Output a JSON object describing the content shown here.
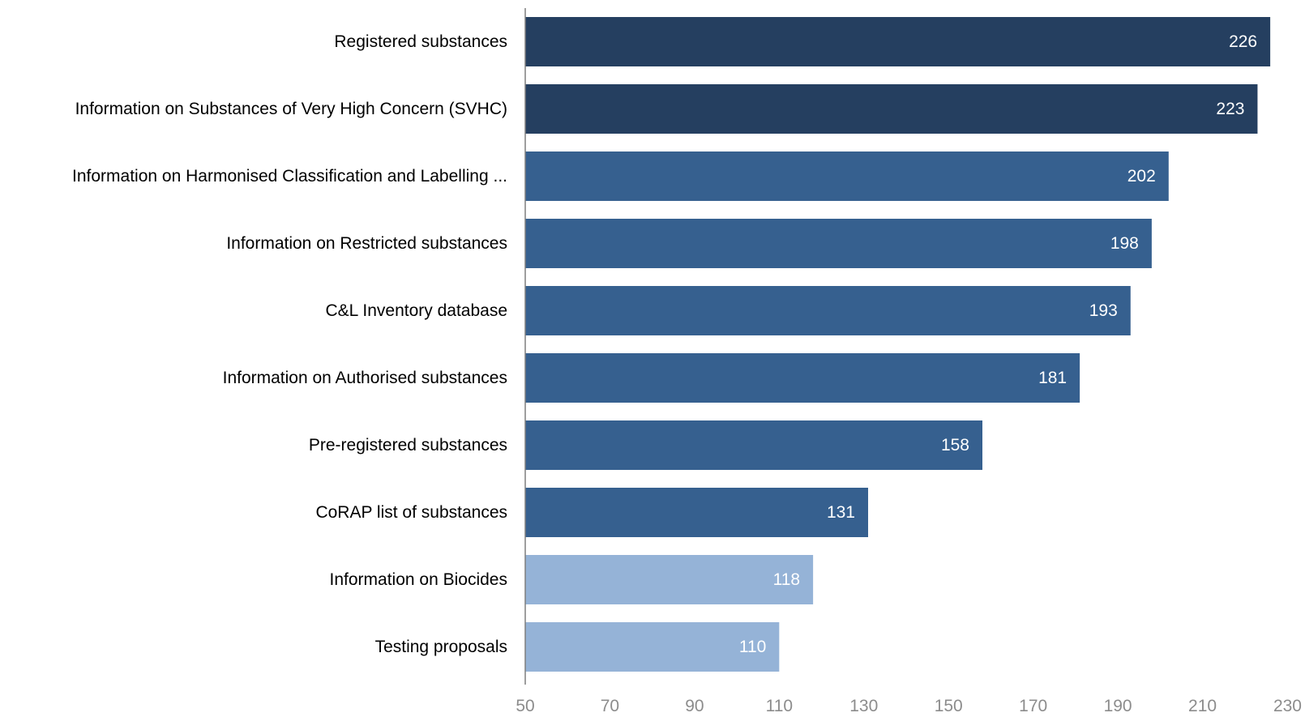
{
  "chart_data": {
    "type": "bar",
    "orientation": "horizontal",
    "categories": [
      "Registered substances",
      "Information on Substances of Very High Concern (SVHC)",
      "Information on Harmonised Classification and Labelling ...",
      "Information on Restricted substances",
      "C&L Inventory database",
      "Information on Authorised substances",
      "Pre-registered substances",
      "CoRAP list of substances",
      "Information on Biocides",
      "Testing proposals"
    ],
    "values": [
      226,
      223,
      202,
      198,
      193,
      181,
      158,
      131,
      118,
      110
    ],
    "data_labels": [
      "226",
      "223",
      "202",
      "198",
      "193",
      "181",
      "158",
      "131",
      "118",
      "110"
    ],
    "bar_colors": [
      "#253f60",
      "#253f60",
      "#36608f",
      "#36608f",
      "#36608f",
      "#36608f",
      "#36608f",
      "#36608f",
      "#95b3d7",
      "#95b3d7"
    ],
    "xlim": [
      50,
      230
    ],
    "xticks": [
      50,
      70,
      90,
      110,
      130,
      150,
      170,
      190,
      210,
      230
    ],
    "xtick_labels": [
      "50",
      "70",
      "90",
      "110",
      "130",
      "150",
      "170",
      "190",
      "210",
      "230"
    ],
    "title": "",
    "xlabel": "",
    "ylabel": "",
    "grid": false,
    "legend": "none",
    "colors": {
      "axis_line": "#7f7f7f",
      "tick_text": "#8c8c8c",
      "category_text": "#000000",
      "value_text": "#ffffff"
    }
  }
}
